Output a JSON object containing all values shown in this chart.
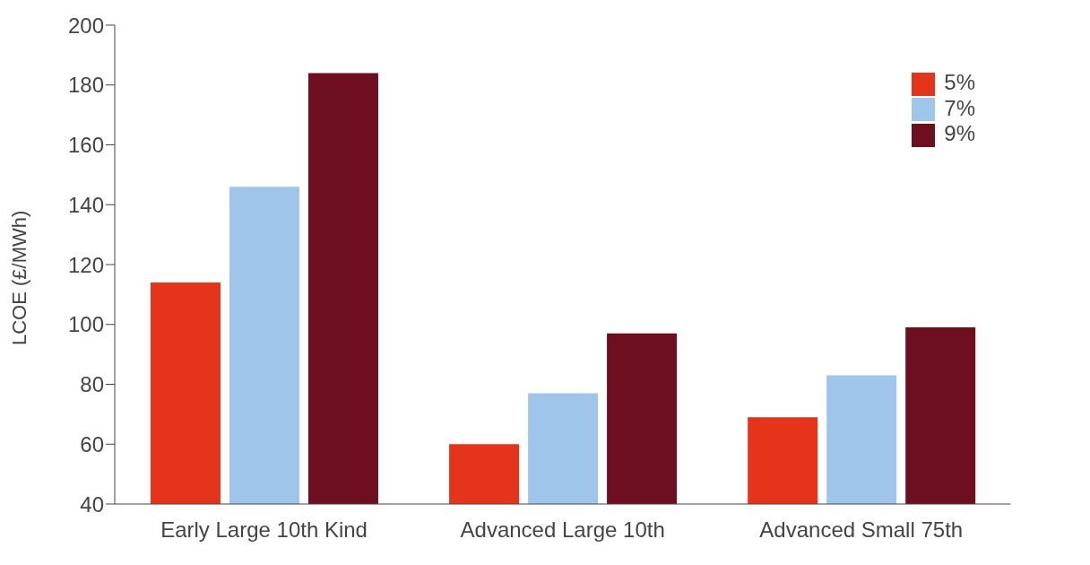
{
  "chart_data": {
    "type": "bar",
    "ylabel": "LCOE (£/MWh)",
    "categories": [
      "Early Large 10th Kind",
      "Advanced Large 10th",
      "Advanced Small 75th"
    ],
    "series": [
      {
        "name": "5%",
        "color": "#e5341a",
        "values": [
          114,
          60,
          69
        ]
      },
      {
        "name": "7%",
        "color": "#9fc5eb",
        "values": [
          146,
          77,
          83
        ]
      },
      {
        "name": "9%",
        "color": "#6d0f1e",
        "values": [
          184,
          97,
          99
        ]
      }
    ],
    "ylim": [
      40,
      200
    ],
    "yticks": [
      40,
      60,
      80,
      100,
      120,
      140,
      160,
      180,
      200
    ],
    "grid": false,
    "legend": "top right"
  }
}
